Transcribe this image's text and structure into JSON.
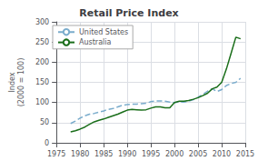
{
  "chart_data": {
    "type": "line",
    "title": "Retail Price Index",
    "ylabel": "Index\n(2000 = 100)",
    "x": [
      1978,
      1979,
      1980,
      1981,
      1982,
      1983,
      1984,
      1985,
      1986,
      1987,
      1988,
      1989,
      1990,
      1991,
      1992,
      1993,
      1994,
      1995,
      1996,
      1997,
      1998,
      1999,
      2000,
      2001,
      2002,
      2003,
      2004,
      2005,
      2006,
      2007,
      2008,
      2009,
      2010,
      2011,
      2012,
      2013,
      2014
    ],
    "series": [
      {
        "name": "United States",
        "color": "#7aaccc",
        "line_style": "dashed",
        "values": [
          48,
          54,
          61,
          67,
          71,
          73,
          76,
          79,
          83,
          85,
          89,
          93,
          95,
          96,
          96,
          97,
          98,
          102,
          104,
          104,
          103,
          101,
          100,
          101,
          101,
          103,
          107,
          113,
          120,
          128,
          134,
          127,
          132,
          142,
          147,
          150,
          160
        ]
      },
      {
        "name": "Australia",
        "color": "#1a6e1a",
        "line_style": "solid",
        "values": [
          27,
          30,
          34,
          39,
          46,
          52,
          56,
          59,
          63,
          67,
          71,
          76,
          81,
          83,
          82,
          81,
          82,
          86,
          89,
          89,
          87,
          87,
          100,
          103,
          103,
          105,
          108,
          112,
          117,
          123,
          134,
          138,
          150,
          183,
          222,
          262,
          258
        ]
      }
    ],
    "xlim": [
      1975,
      2015
    ],
    "xticks": [
      1975,
      1980,
      1985,
      1990,
      1995,
      2000,
      2005,
      2010,
      2015
    ],
    "ylim": [
      0,
      300
    ],
    "yticks": [
      0,
      50,
      100,
      150,
      200,
      250,
      300
    ],
    "grid": true,
    "legend": "upper left"
  }
}
